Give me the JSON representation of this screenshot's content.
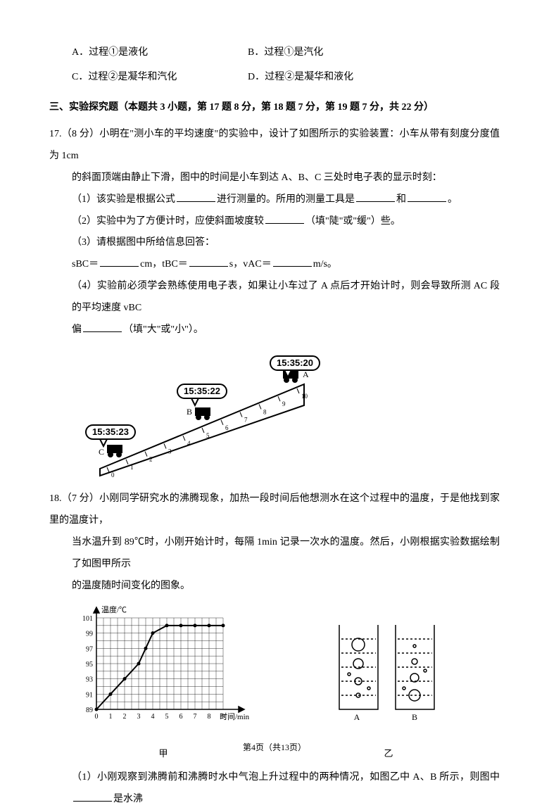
{
  "q16": {
    "optA": "A．过程①是液化",
    "optB": "B．过程①是汽化",
    "optC": "C．过程②是凝华和汽化",
    "optD": "D．过程②是凝华和液化"
  },
  "section3": {
    "header": "三、实验探究题（本题共 3 小题，第 17 题 8 分，第 18 题 7 分，第 19 题 7 分，共 22 分）"
  },
  "q17": {
    "intro1": "17.（8 分）小明在\"测小车的平均速度\"的实验中，设计了如图所示的实验装置：小车从带有刻度分度值为 1cm",
    "intro2": "的斜面顶端由静止下滑，图中的时间是小车到达 A、B、C 三处时电子表的显示时刻：",
    "p1a": "（1）该实验是根据公式",
    "p1b": "进行测量的。所用的测量工具是",
    "p1c": "和",
    "p1d": "。",
    "p2a": "（2）实验中为了方便计时，应使斜面坡度较",
    "p2b": "（填\"陡\"或\"缓\"）些。",
    "p3": "（3）请根据图中所给信息回答：",
    "p3sa": "sBC＝",
    "p3sb": "cm，tBC＝",
    "p3sc": "s，vAC＝",
    "p3sd": "m/s。",
    "p4a": "（4）实验前必须学会熟练使用电子表，如果让小车过了 A 点后才开始计时，则会导致所测 AC 段的平均速度 vBC",
    "p4b": "偏",
    "p4c": "（填\"大\"或\"小\"）。",
    "ramp": {
      "timeA": "15:35:20",
      "timeB": "15:35:22",
      "timeC": "15:35:23",
      "labelA": "A",
      "labelB": "B",
      "labelC": "C",
      "ticks": [
        0,
        1,
        2,
        3,
        4,
        5,
        6,
        7,
        8,
        9,
        10
      ]
    }
  },
  "q18": {
    "intro1": "18.（7 分）小刚同学研究水的沸腾现象，加热一段时间后他想测水在这个过程中的温度，于是他找到家里的温度计，",
    "intro2": "当水温升到 89℃时，小刚开始计时，每隔 1min 记录一次水的温度。然后，小刚根据实验数据绘制了如图甲所示",
    "intro3": "的温度随时间变化的图象。",
    "chart": {
      "ylabel": "温度/℃",
      "xlabel": "时间/min",
      "yticks": [
        89,
        91,
        93,
        95,
        97,
        99,
        101
      ],
      "xticks": [
        0,
        1,
        2,
        3,
        4,
        5,
        6,
        7,
        8,
        9
      ],
      "points": [
        [
          0,
          89
        ],
        [
          1,
          91
        ],
        [
          2,
          93
        ],
        [
          3,
          95
        ],
        [
          3.5,
          97
        ],
        [
          4,
          99
        ],
        [
          5,
          100
        ],
        [
          6,
          100
        ],
        [
          7,
          100
        ],
        [
          8,
          100
        ],
        [
          9,
          100
        ]
      ],
      "line_color": "#000000",
      "grid_color": "#000000",
      "background": "#ffffff",
      "jia_label": "甲",
      "yi_label": "乙",
      "a_label": "A",
      "b_label": "B"
    },
    "p1a": "（1）小刚观察到沸腾前和沸腾时水中气泡上升过程中的两种情况，如图乙中 A、B 所示，则图中",
    "p1b": "是水沸"
  },
  "footer": {
    "text": "第4页（共13页）"
  }
}
